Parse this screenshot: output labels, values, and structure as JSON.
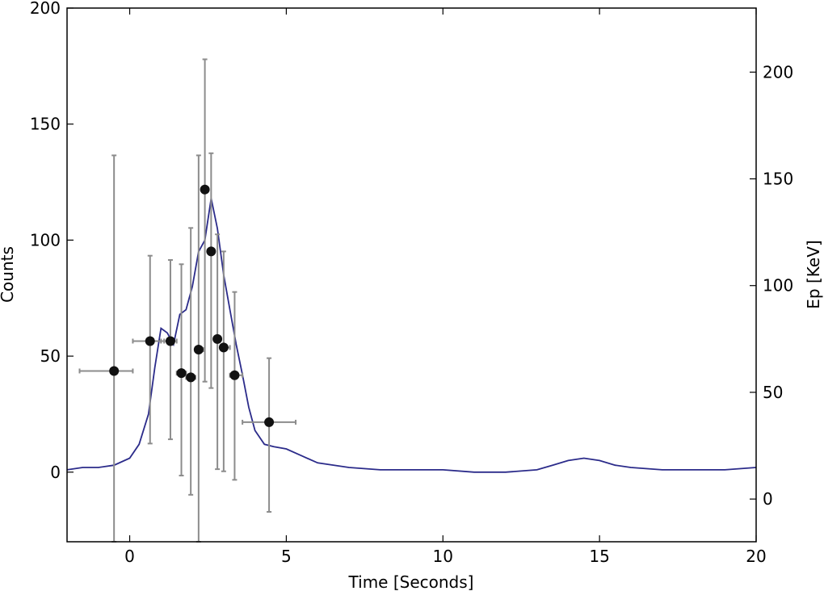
{
  "chart_data": {
    "type": "line+scatter",
    "xlabel": "Time [Seconds]",
    "ylabel_left": "Counts",
    "ylabel_right": "Ep [KeV]",
    "xlim": [
      -2,
      20
    ],
    "ylim_left": [
      -30,
      200
    ],
    "ylim_right": [
      -20,
      230
    ],
    "x_ticks": [
      0,
      5,
      10,
      15,
      20
    ],
    "y_ticks_left": [
      0,
      50,
      100,
      150,
      200
    ],
    "y_ticks_right": [
      0,
      50,
      100,
      150,
      200
    ],
    "grid": false,
    "colors": {
      "lightcurve": "#2b2b8a",
      "points": "#111111",
      "errorbars": "#8c8c8c"
    },
    "lightcurve": {
      "name": "",
      "x": [
        -2.0,
        -1.5,
        -1.0,
        -0.5,
        0.0,
        0.3,
        0.6,
        0.8,
        1.0,
        1.2,
        1.4,
        1.6,
        1.8,
        2.0,
        2.2,
        2.4,
        2.6,
        2.8,
        3.0,
        3.2,
        3.4,
        3.6,
        3.8,
        4.0,
        4.3,
        4.6,
        5.0,
        5.5,
        6.0,
        7.0,
        8.0,
        9.0,
        10.0,
        11.0,
        12.0,
        13.0,
        13.5,
        14.0,
        14.5,
        15.0,
        15.5,
        16.0,
        17.0,
        18.0,
        19.0,
        20.0
      ],
      "y": [
        1,
        2,
        2,
        3,
        6,
        12,
        25,
        45,
        62,
        60,
        55,
        68,
        70,
        80,
        95,
        100,
        118,
        105,
        85,
        70,
        55,
        42,
        28,
        18,
        12,
        11,
        10,
        7,
        4,
        2,
        1,
        1,
        1,
        0,
        0,
        1,
        3,
        5,
        6,
        5,
        3,
        2,
        1,
        1,
        1,
        2
      ]
    },
    "ep_points": {
      "name": "",
      "x": [
        -0.5,
        0.65,
        1.3,
        1.65,
        1.95,
        2.2,
        2.4,
        2.6,
        2.8,
        3.0,
        3.35,
        4.45
      ],
      "y": [
        60,
        74,
        74,
        59,
        57,
        70,
        145,
        116,
        75,
        71,
        58,
        36
      ],
      "y_low": [
        -20,
        26,
        28,
        11,
        2,
        -20,
        55,
        52,
        14,
        13,
        9,
        -6
      ],
      "y_high": [
        161,
        114,
        112,
        110,
        127,
        161,
        206,
        162,
        124,
        116,
        97,
        66
      ],
      "x_low": [
        -1.6,
        0.1,
        1.0,
        1.5,
        1.8,
        2.1,
        2.35,
        2.5,
        2.7,
        2.9,
        3.2,
        3.6
      ],
      "x_high": [
        0.1,
        1.1,
        1.5,
        1.8,
        2.1,
        2.35,
        2.5,
        2.7,
        2.9,
        3.2,
        3.6,
        5.3
      ]
    }
  }
}
